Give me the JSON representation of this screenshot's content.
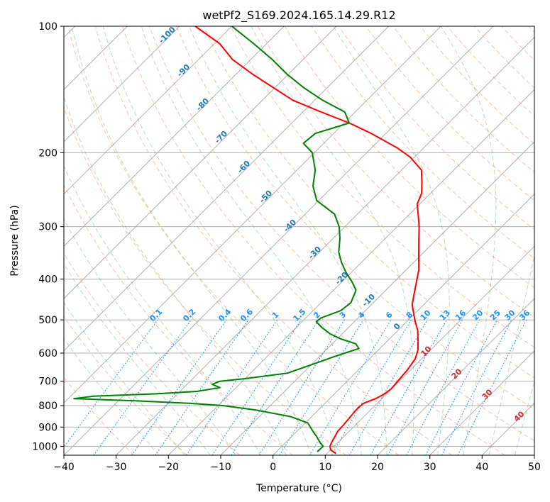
{
  "chart_data": {
    "type": "line",
    "title": "wetPf2_S169.2024.165.14.29.R12",
    "xlabel": "Temperature (°C)",
    "ylabel": "Pressure (hPa)",
    "xlim": [
      -40,
      50
    ],
    "ylim": [
      1050,
      100
    ],
    "y_scale": "log",
    "grid": true,
    "x_ticks": [
      -40,
      -30,
      -20,
      -10,
      0,
      10,
      20,
      30,
      40,
      50
    ],
    "x_tick_labels": [
      "−40",
      "−30",
      "−20",
      "−10",
      "0",
      "10",
      "20",
      "30",
      "40",
      "50"
    ],
    "y_ticks": [
      100,
      200,
      300,
      400,
      500,
      600,
      700,
      800,
      900,
      1000
    ],
    "y_tick_labels": [
      "100",
      "200",
      "300",
      "400",
      "500",
      "600",
      "700",
      "800",
      "900",
      "1000"
    ],
    "skew": true,
    "colors": {
      "temperature": "#ff0000",
      "dewpoint": "#008000",
      "dry_adiabat": "#ff7f50",
      "moist_adiabat": "#2ca02c",
      "mixing_ratio": "#1e90ff",
      "isotherm": "#808080",
      "adiabat_label": "#1f77b4",
      "moist_label": "#d62728",
      "gray_label": "#808080"
    },
    "series": [
      {
        "key": "temperature",
        "points": [
          [
            1040,
            11.7
          ],
          [
            1020,
            10.0
          ],
          [
            1000,
            9.2
          ],
          [
            980,
            8.8
          ],
          [
            950,
            8.3
          ],
          [
            920,
            7.8
          ],
          [
            890,
            7.7
          ],
          [
            860,
            7.5
          ],
          [
            830,
            7.3
          ],
          [
            810,
            7.2
          ],
          [
            790,
            7.4
          ],
          [
            770,
            8.8
          ],
          [
            750,
            9.6
          ],
          [
            730,
            9.9
          ],
          [
            700,
            9.7
          ],
          [
            660,
            9.4
          ],
          [
            620,
            8.8
          ],
          [
            590,
            7.6
          ],
          [
            560,
            5.8
          ],
          [
            530,
            3.8
          ],
          [
            500,
            1.2
          ],
          [
            460,
            -2.2
          ],
          [
            420,
            -4.8
          ],
          [
            380,
            -7.6
          ],
          [
            350,
            -10.5
          ],
          [
            320,
            -13.6
          ],
          [
            300,
            -15.8
          ],
          [
            280,
            -18.4
          ],
          [
            265,
            -20.5
          ],
          [
            250,
            -21.7
          ],
          [
            235,
            -23.8
          ],
          [
            220,
            -26.2
          ],
          [
            205,
            -30.8
          ],
          [
            195,
            -35.0
          ],
          [
            180,
            -42.8
          ],
          [
            170,
            -49.0
          ],
          [
            160,
            -56.5
          ],
          [
            150,
            -64.2
          ],
          [
            140,
            -70.3
          ],
          [
            130,
            -76.9
          ],
          [
            120,
            -83.5
          ],
          [
            110,
            -89.0
          ],
          [
            100,
            -97.0
          ]
        ]
      },
      {
        "key": "dewpoint",
        "points": [
          [
            1030,
            7.8
          ],
          [
            1000,
            7.9
          ],
          [
            980,
            6.6
          ],
          [
            950,
            4.9
          ],
          [
            920,
            3.0
          ],
          [
            880,
            0.5
          ],
          [
            850,
            -4.0
          ],
          [
            820,
            -11.8
          ],
          [
            800,
            -19.1
          ],
          [
            790,
            -26.0
          ],
          [
            780,
            -36.0
          ],
          [
            770,
            -48.9
          ],
          [
            760,
            -45.6
          ],
          [
            750,
            -34.1
          ],
          [
            740,
            -26.8
          ],
          [
            725,
            -23.1
          ],
          [
            712,
            -25.2
          ],
          [
            700,
            -24.3
          ],
          [
            690,
            -20.0
          ],
          [
            670,
            -13.0
          ],
          [
            640,
            -10.0
          ],
          [
            610,
            -7.0
          ],
          [
            585,
            -4.0
          ],
          [
            570,
            -5.5
          ],
          [
            555,
            -9.3
          ],
          [
            540,
            -12.3
          ],
          [
            520,
            -15.3
          ],
          [
            505,
            -17.3
          ],
          [
            495,
            -17.1
          ],
          [
            475,
            -14.7
          ],
          [
            455,
            -14.3
          ],
          [
            425,
            -15.7
          ],
          [
            405,
            -18.2
          ],
          [
            385,
            -21.1
          ],
          [
            365,
            -23.8
          ],
          [
            345,
            -26.3
          ],
          [
            320,
            -28.7
          ],
          [
            300,
            -31.1
          ],
          [
            280,
            -34.4
          ],
          [
            260,
            -40.4
          ],
          [
            240,
            -43.9
          ],
          [
            220,
            -46.5
          ],
          [
            200,
            -50.4
          ],
          [
            190,
            -53.9
          ],
          [
            180,
            -53.5
          ],
          [
            170,
            -49.0
          ],
          [
            160,
            -52.0
          ],
          [
            150,
            -58.5
          ],
          [
            140,
            -64.5
          ],
          [
            130,
            -70.3
          ],
          [
            120,
            -75.9
          ],
          [
            110,
            -82.5
          ],
          [
            100,
            -90.0
          ]
        ]
      }
    ],
    "dry_adiabat_labels": [
      "-100",
      "-90",
      "-80",
      "-70",
      "-60",
      "-50",
      "-40",
      "-30",
      "-20",
      "-10",
      "0"
    ],
    "mixing_ratio_labels": [
      "0.1",
      "0.2",
      "0.4",
      "0.6",
      "1",
      "1.5",
      "2",
      "3",
      "4",
      "6",
      "8",
      "10",
      "13",
      "16",
      "20",
      "25",
      "30",
      "36"
    ],
    "moist_adiabat_labels": [
      "10",
      "20",
      "30",
      "40"
    ]
  }
}
